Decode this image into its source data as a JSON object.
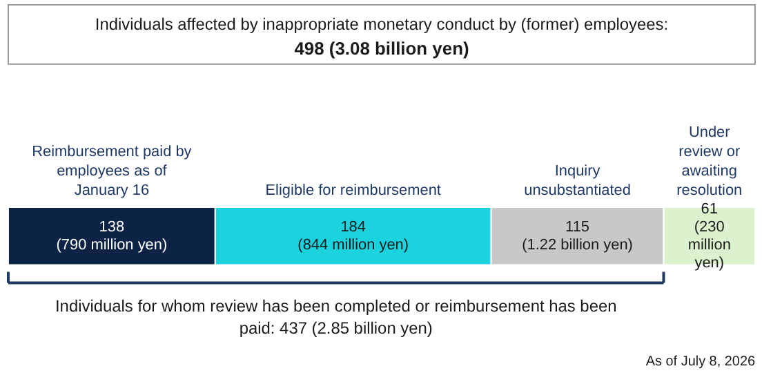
{
  "chart_data": {
    "type": "bar",
    "orientation": "horizontal",
    "stacked": true,
    "title": "Individuals affected by inappropriate monetary conduct by (former) employees:",
    "subtitle": "498 (3.08 billion yen)",
    "categories": [
      null
    ],
    "series": [
      {
        "name": "Reimbursement paid by employees as of January 16",
        "color": "#0c2345",
        "values": [
          138
        ],
        "value_labels": [
          "138 (790 million yen)"
        ]
      },
      {
        "name": "Eligible for reimbursement",
        "color": "#1ad3df",
        "values": [
          184
        ],
        "value_labels": [
          "184 (844 million yen)"
        ]
      },
      {
        "name": "Inquiry unsubstantiated",
        "color": "#c8c8c8",
        "values": [
          115
        ],
        "value_labels": [
          "115 (1.22 billion yen)"
        ]
      },
      {
        "name": "Under review or awaiting resolution",
        "color": "#dcf2cf",
        "values": [
          61
        ],
        "value_labels": [
          "61 (230 million yen)"
        ]
      }
    ],
    "tick_labels": false,
    "annotations": [
      "Individuals for whom review has been completed or reimbursement has been paid: 437 (2.85 billion yen)",
      "As of July 8, 2026"
    ]
  }
}
